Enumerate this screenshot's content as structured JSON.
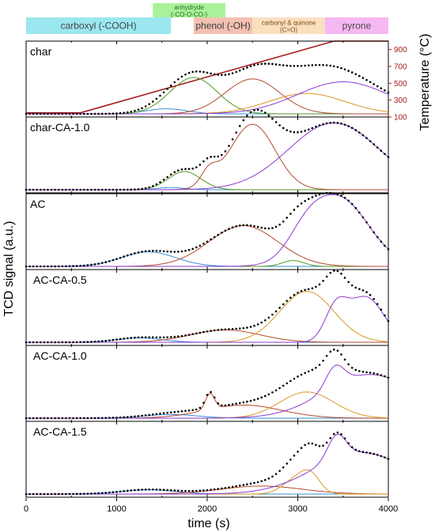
{
  "chart_data": {
    "type": "line",
    "xlabel": "time (s)",
    "ylabel": "TCD signal (a.u.)",
    "y2label": "Temperature (°C)",
    "xlim": [
      0,
      4000
    ],
    "xticks": [
      0,
      1000,
      2000,
      3000,
      4000
    ],
    "y2lim": [
      100,
      1000
    ],
    "y2ticks": [
      100,
      300,
      500,
      700,
      900
    ],
    "grid": false,
    "colors": {
      "carboxyl": "#3a8fd6",
      "anhydride": "#4f9a22",
      "phenol": "#b44a30",
      "carbonyl": "#d99a22",
      "pyrone": "#8d3ad2",
      "envelope": "#000000",
      "temperature": "#a51c1c"
    },
    "bands": [
      {
        "label": "carboxyl (-COOH)",
        "color": "#9be7ef",
        "text_color": "#444444",
        "x_range": [
          0,
          1600
        ],
        "row": 1
      },
      {
        "label": "anhydryde",
        "label2": "(-CO-O-CO-)",
        "color": "#a8f29a",
        "text_color": "#2d6a1e",
        "x_range": [
          1400,
          2200
        ],
        "row": 0
      },
      {
        "label": "phenol (-OH)",
        "color": "#f4c0b2",
        "text_color": "#3a3a3a",
        "x_range": [
          1850,
          2500
        ],
        "row": 1
      },
      {
        "label": "carbonyl & quinone",
        "label2": "(C=O)",
        "color": "#fbe0c0",
        "text_color": "#7a4a10",
        "x_range": [
          2500,
          3300
        ],
        "row": 1
      },
      {
        "label": "pyrone",
        "color": "#f5b8f2",
        "text_color": "#4a4a4a",
        "x_range": [
          3300,
          4000
        ],
        "row": 1
      }
    ],
    "temperature": {
      "x": [
        0,
        600,
        3400,
        4000
      ],
      "y": [
        150,
        150,
        1000,
        1000
      ]
    },
    "panels": [
      {
        "name": "char",
        "ylim": [
          0,
          1.0
        ],
        "series": [
          {
            "component": "carboxyl",
            "peaks": [
              [
                1550,
                0.07,
                220
              ]
            ]
          },
          {
            "component": "anhydride",
            "peaks": [
              [
                1850,
                0.5,
                260
              ]
            ]
          },
          {
            "component": "phenol",
            "peaks": [
              [
                2500,
                0.48,
                300
              ]
            ]
          },
          {
            "component": "carbonyl",
            "peaks": [
              [
                3100,
                0.28,
                420
              ]
            ]
          },
          {
            "component": "pyrone",
            "peaks": [
              [
                3500,
                0.44,
                500
              ]
            ]
          }
        ]
      },
      {
        "name": "char-CA-1.0",
        "ylim": [
          0,
          1.0
        ],
        "series": [
          {
            "component": "carboxyl",
            "peaks": [
              [
                1600,
                0.03,
                150
              ]
            ]
          },
          {
            "component": "anhydride",
            "peaks": [
              [
                1750,
                0.25,
                180
              ]
            ]
          },
          {
            "component": "phenol",
            "peaks": [
              [
                2020,
                0.2,
                90
              ],
              [
                2500,
                0.9,
                250
              ]
            ]
          },
          {
            "component": "pyrone",
            "peaks": [
              [
                3400,
                0.92,
                500
              ]
            ]
          }
        ]
      },
      {
        "name": "AC",
        "ylim": [
          0,
          1.0
        ],
        "series": [
          {
            "component": "carboxyl",
            "peaks": [
              [
                1350,
                0.2,
                300
              ]
            ]
          },
          {
            "component": "anhydride",
            "peaks": [
              [
                2950,
                0.08,
                120
              ]
            ]
          },
          {
            "component": "phenol",
            "peaks": [
              [
                2400,
                0.56,
                380
              ]
            ]
          },
          {
            "component": "pyrone",
            "peaks": [
              [
                3080,
                0.24,
                190
              ],
              [
                3450,
                0.94,
                330
              ]
            ]
          }
        ]
      },
      {
        "name": "AC-CA-0.5",
        "ylim": [
          0,
          1.0
        ],
        "series": [
          {
            "component": "carboxyl",
            "peaks": [
              [
                1250,
                0.06,
                250
              ]
            ]
          },
          {
            "component": "phenol",
            "peaks": [
              [
                2200,
                0.17,
                380
              ]
            ]
          },
          {
            "component": "carbonyl",
            "peaks": [
              [
                3100,
                0.7,
                300
              ]
            ]
          },
          {
            "component": "pyrone",
            "peaks": [
              [
                3420,
                0.43,
                120
              ],
              [
                3750,
                0.62,
                200
              ]
            ]
          }
        ]
      },
      {
        "name": "AC-CA-1.0",
        "ylim": [
          0,
          1.0
        ],
        "series": [
          {
            "component": "carboxyl",
            "peaks": [
              [
                1600,
                0.05,
                300
              ]
            ]
          },
          {
            "component": "phenol",
            "peaks": [
              [
                2030,
                0.22,
                50
              ],
              [
                2400,
                0.18,
                420
              ]
            ]
          },
          {
            "component": "carbonyl",
            "peaks": [
              [
                3100,
                0.36,
                300
              ]
            ]
          },
          {
            "component": "pyrone",
            "peaks": [
              [
                3410,
                0.28,
                100
              ],
              [
                3800,
                0.6,
                500
              ]
            ]
          }
        ]
      },
      {
        "name": "AC-CA-1.5",
        "ylim": [
          0,
          1.0
        ],
        "series": [
          {
            "component": "carboxyl",
            "peaks": [
              [
                1350,
                0.06,
                300
              ]
            ]
          },
          {
            "component": "phenol",
            "peaks": [
              [
                2600,
                0.11,
                450
              ]
            ]
          },
          {
            "component": "carbonyl",
            "peaks": [
              [
                3000,
                0.22,
                150
              ],
              [
                3150,
                0.18,
                100
              ]
            ]
          },
          {
            "component": "pyrone",
            "peaks": [
              [
                3430,
                0.32,
                100
              ],
              [
                3700,
                0.57,
                520
              ]
            ]
          }
        ]
      }
    ]
  }
}
